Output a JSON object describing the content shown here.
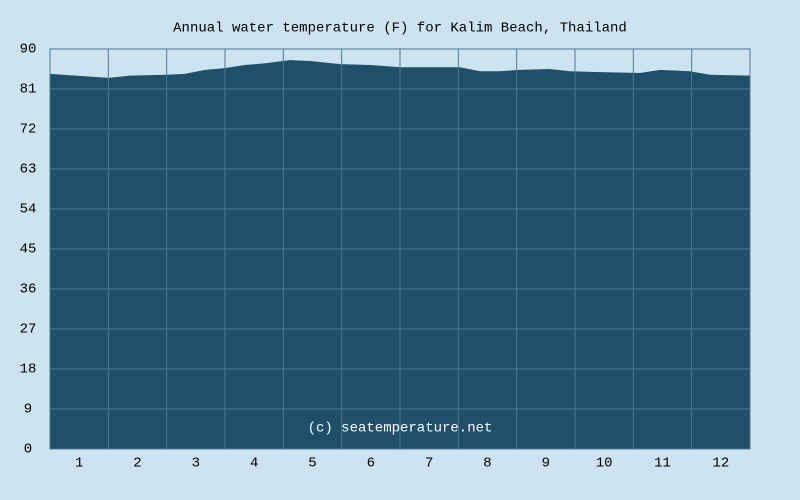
{
  "chart_data": {
    "type": "area",
    "title": "Annual water temperature (F) for Kalim Beach, Thailand",
    "annotation": "(c) seatemperature.net",
    "x": [
      0.5,
      1.5,
      1.87,
      2.5,
      2.81,
      3.16,
      3.5,
      3.84,
      4.19,
      4.61,
      4.96,
      5.47,
      5.99,
      6.5,
      7.01,
      7.53,
      7.87,
      8.21,
      8.56,
      9.07,
      9.41,
      9.93,
      10.61,
      10.96,
      11.47,
      11.81,
      12.5
    ],
    "values": [
      84.4,
      83.5,
      84.0,
      84.2,
      84.4,
      85.3,
      85.7,
      86.4,
      86.8,
      87.5,
      87.3,
      86.6,
      86.4,
      85.9,
      85.9,
      85.9,
      85.0,
      85.0,
      85.3,
      85.5,
      85.0,
      84.8,
      84.6,
      85.3,
      85.0,
      84.2,
      84.0
    ],
    "color": "#1f5069",
    "xlim": [
      0.5,
      12.5
    ],
    "xticks": [
      1,
      2,
      3,
      4,
      5,
      6,
      7,
      8,
      9,
      10,
      11,
      12
    ],
    "ylim": [
      0,
      90
    ],
    "yticks": [
      0,
      9,
      18,
      27,
      36,
      45,
      54,
      63,
      72,
      81,
      90
    ],
    "grid": true
  }
}
